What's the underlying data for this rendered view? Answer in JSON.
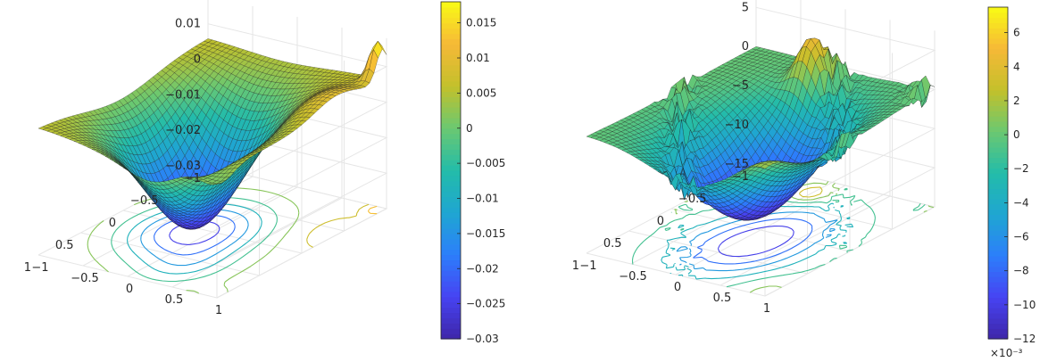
{
  "chart_data": [
    {
      "type": "surface3d",
      "title": "",
      "xlabel": "",
      "ylabel": "",
      "zlabel": "",
      "xlim": [
        -1,
        1
      ],
      "ylim": [
        -1,
        1
      ],
      "zlim": [
        -0.03,
        0.018
      ],
      "x_ticks": [
        "-1",
        "-0.5",
        "0",
        "0.5",
        "1"
      ],
      "y_ticks": [
        "-1",
        "-0.5",
        "0",
        "0.5",
        "1"
      ],
      "z_ticks": [
        "-0.03",
        "-0.02",
        "-0.01",
        "0",
        "0.01"
      ],
      "z_exponent_label": "",
      "contour_projection": true,
      "grid": true,
      "colormap": "parula",
      "colormap_colors": [
        "#3e26a8",
        "#4743f2",
        "#2c7efb",
        "#1fa6d1",
        "#23bcaa",
        "#6ac871",
        "#c3c02b",
        "#f6b837",
        "#f9fb15"
      ],
      "colorbar": {
        "range": [
          -0.03,
          0.018
        ],
        "tick_values": [
          -0.03,
          -0.025,
          -0.02,
          -0.015,
          -0.01,
          -0.005,
          0,
          0.005,
          0.01,
          0.015
        ],
        "tick_labels": [
          "-0.03",
          "-0.025",
          "-0.02",
          "-0.015",
          "-0.01",
          "-0.005",
          "0",
          "0.005",
          "0.01",
          "0.015"
        ],
        "exponent_label": ""
      },
      "surface_features": {
        "min_value": -0.03,
        "max_value": 0.0175,
        "edge_plateau_value": 0.006,
        "peak_location": [
          -0.95,
          0.95
        ]
      }
    },
    {
      "type": "surface3d",
      "title": "",
      "xlabel": "",
      "ylabel": "",
      "zlabel": "",
      "xlim": [
        -1,
        1
      ],
      "ylim": [
        -1,
        1
      ],
      "zlim": [
        -15,
        7.5
      ],
      "x_ticks": [
        "-1",
        "-0.5",
        "0",
        "0.5",
        "1"
      ],
      "y_ticks": [
        "-1",
        "-0.5",
        "0",
        "0.5",
        "1"
      ],
      "z_ticks": [
        "-15",
        "-10",
        "-5",
        "0",
        "5"
      ],
      "z_exponent_label": "×10⁻³",
      "contour_projection": true,
      "grid": true,
      "colormap": "parula",
      "colormap_colors": [
        "#3e26a8",
        "#4743f2",
        "#2c7efb",
        "#1fa6d1",
        "#23bcaa",
        "#6ac871",
        "#c3c02b",
        "#f6b837",
        "#f9fb15"
      ],
      "colorbar": {
        "range": [
          -12,
          7.5
        ],
        "tick_values": [
          -12,
          -10,
          -8,
          -6,
          -4,
          -2,
          0,
          2,
          4,
          6
        ],
        "tick_labels": [
          "-12",
          "-10",
          "-8",
          "-6",
          "-4",
          "-2",
          "0",
          "2",
          "4",
          "6"
        ],
        "exponent_label": "×10⁻³"
      },
      "surface_features": {
        "min_value": -12,
        "max_value": 7,
        "edge_plateau_value": 0,
        "noisy_band": true
      }
    }
  ]
}
